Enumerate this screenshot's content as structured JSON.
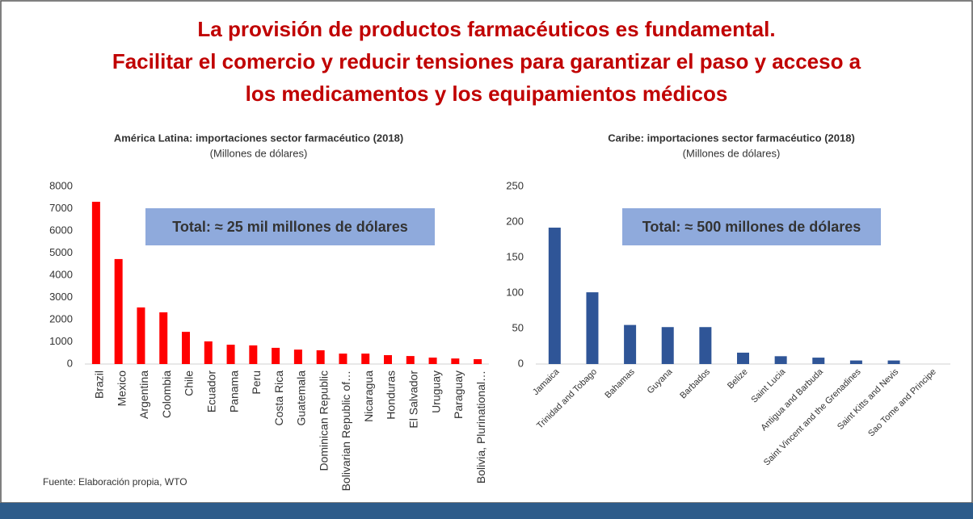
{
  "title": [
    "La provisión de productos farmacéuticos es fundamental.",
    "Facilitar el comercio y reducir tensiones para garantizar el paso y acceso a",
    "los medicamentos y los equipamientos médicos"
  ],
  "source": "Fuente: Elaboración propia, WTO",
  "chart_data": [
    {
      "type": "bar",
      "title": "América Latina: importaciones sector farmacéutico (2018)",
      "subtitle": "(Millones de dólares)",
      "annotation": "Total: ≈ 25 mil millones de dólares",
      "categories": [
        "Brazil",
        "Mexico",
        "Argentina",
        "Colombia",
        "Chile",
        "Ecuador",
        "Panama",
        "Peru",
        "Costa Rica",
        "Guatemala",
        "Dominican Republic",
        "Bolivarian Republic of…",
        "Nicaragua",
        "Honduras",
        "El Salvador",
        "Uruguay",
        "Paraguay",
        "Bolivia, Plurinational…"
      ],
      "values": [
        7310,
        4730,
        2550,
        2330,
        1450,
        1020,
        870,
        840,
        730,
        650,
        620,
        470,
        470,
        400,
        360,
        290,
        250,
        220
      ],
      "color": "#ff0000",
      "ylim": [
        0,
        8000
      ],
      "yticks": [
        0,
        1000,
        2000,
        3000,
        4000,
        5000,
        6000,
        7000,
        8000
      ],
      "grid": false
    },
    {
      "type": "bar",
      "title": "Caribe: importaciones sector farmacéutico (2018)",
      "subtitle": "(Millones de dólares)",
      "annotation": "Total: ≈ 500 millones de dólares",
      "categories": [
        "Jamaica",
        "Trinidad and Tobago",
        "Bahamas",
        "Guyana",
        "Barbados",
        "Belize",
        "Saint Lucia",
        "Antigua and Barbuda",
        "Saint Vincent and the Grenadines",
        "Saint Kitts and Nevis",
        "Sao Tome and Principe"
      ],
      "values": [
        192,
        101,
        55,
        52,
        52,
        16,
        11,
        9,
        5,
        5,
        0
      ],
      "color": "#2f5597",
      "ylim": [
        0,
        250
      ],
      "yticks": [
        0,
        50,
        100,
        150,
        200,
        250
      ],
      "grid": false
    }
  ]
}
